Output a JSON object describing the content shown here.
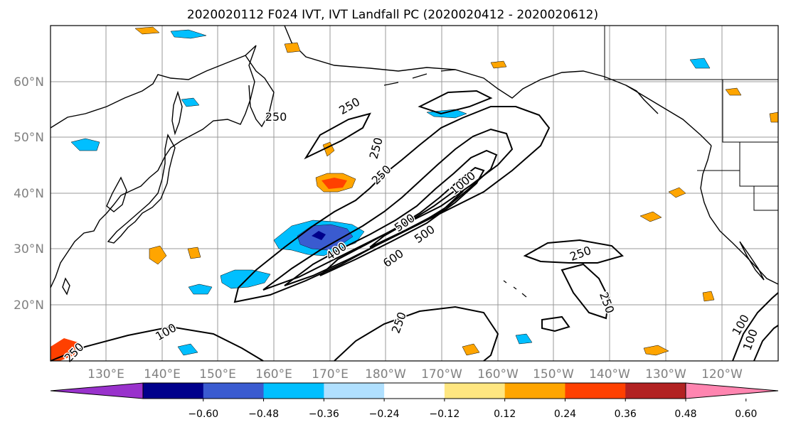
{
  "title": "2020020112 F024 IVT, IVT Landfall PC (2020020412 - 2020020612)",
  "lat_labels": [
    "60°N",
    "50°N",
    "40°N",
    "30°N",
    "20°N"
  ],
  "lon_labels": [
    "130°E",
    "140°E",
    "150°E",
    "160°E",
    "170°E",
    "180°W",
    "170°W",
    "160°W",
    "150°W",
    "140°W",
    "130°W",
    "120°W"
  ],
  "contour_labels": [
    "250",
    "250",
    "250",
    "250",
    "1000",
    "500",
    "500",
    "600",
    "400",
    "250",
    "250",
    "250",
    "100",
    "100",
    "250",
    "100"
  ],
  "colorbar": {
    "colors": [
      "#9932cc",
      "#00008b",
      "#3a5bd0",
      "#00bfff",
      "#b0e0ff",
      "#ffffff",
      "#ffe680",
      "#ffa500",
      "#ff4000",
      "#b22222",
      "#ff85b0"
    ],
    "tick_labels": [
      "−0.60",
      "−0.48",
      "−0.36",
      "−0.24",
      "−0.12",
      "0.12",
      "0.24",
      "0.36",
      "0.48",
      "0.60"
    ]
  },
  "colors": {
    "frame": "#000000",
    "grid": "#999999",
    "axis_label": "#808080",
    "contour": "#000000",
    "coastline": "#000000"
  }
}
